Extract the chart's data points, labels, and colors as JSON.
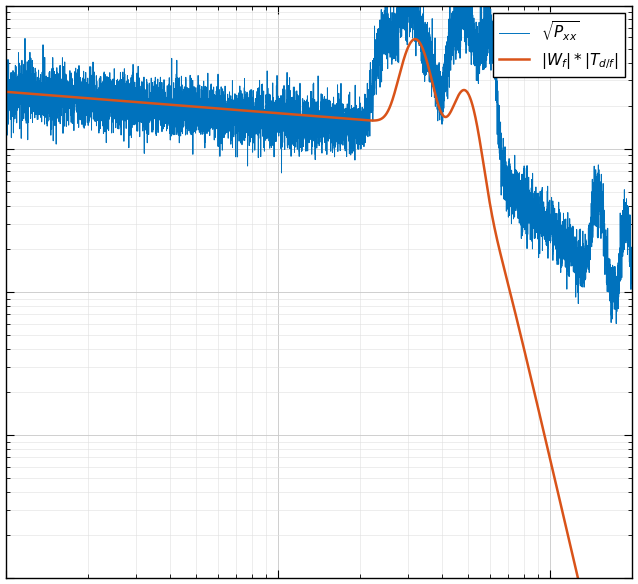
{
  "title": "",
  "xlabel": "",
  "ylabel": "",
  "xlim": [
    1,
    200
  ],
  "ylim": [
    1e-10,
    1e-06
  ],
  "line1_color": "#0072BD",
  "line2_color": "#D95319",
  "line1_label": "$\\sqrt{P_{xx}}$",
  "line2_label": "$|W_f| * |T_{d/f}|$",
  "background_color": "#FFFFFF",
  "figsize": [
    6.38,
    5.84
  ],
  "dpi": 100
}
